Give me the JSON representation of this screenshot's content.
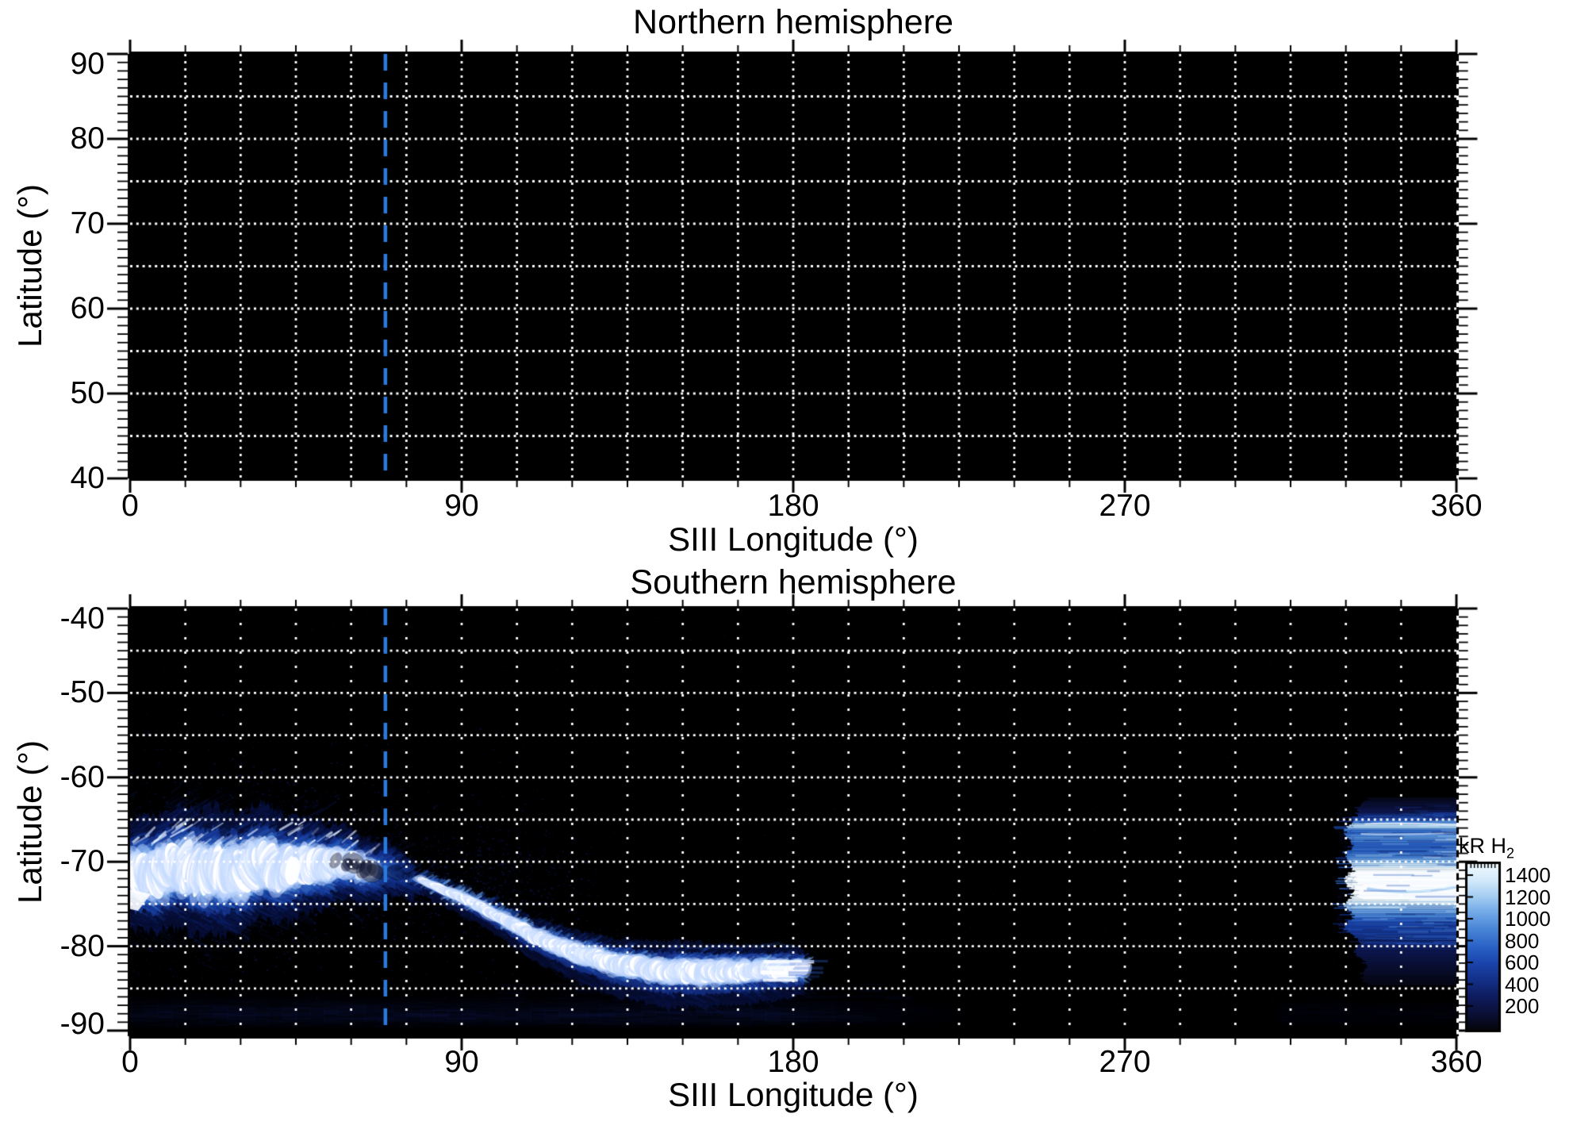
{
  "figure": {
    "background": "#ffffff"
  },
  "chart_data": {
    "type": "heatmap",
    "panels": [
      {
        "id": "north",
        "title": "Northern hemisphere",
        "xlabel": "SIII Longitude (°)",
        "ylabel": "Latitude (°)",
        "xlim": [
          0,
          360
        ],
        "ylim": [
          40,
          90
        ],
        "xticks": [
          0,
          90,
          180,
          270,
          360
        ],
        "yticks": [
          90,
          80,
          70,
          60,
          50,
          40
        ],
        "grid": {
          "lon_step_deg": 15,
          "lat_step_deg": 5
        },
        "marker_longitude_deg": 69.3,
        "emission": "none detected (panel black)"
      },
      {
        "id": "south",
        "title": "Southern hemisphere",
        "xlabel": "SIII Longitude (°)",
        "ylabel": "Latitude (°)",
        "xlim": [
          0,
          360
        ],
        "ylim": [
          -90,
          -40
        ],
        "xticks": [
          0,
          90,
          180,
          270,
          360
        ],
        "yticks": [
          -40,
          -50,
          -60,
          -70,
          -80,
          -90
        ],
        "grid": {
          "lon_step_deg": 15,
          "lat_step_deg": 5
        },
        "marker_longitude_deg": 69.3,
        "auroral_features": {
          "main_oval_path": [
            [
              0,
              -71.9,
              2.2,
              1.0
            ],
            [
              5,
              -71.3,
              2.3,
              1.0
            ],
            [
              10,
              -70.9,
              2.35,
              1.0
            ],
            [
              15,
              -70.7,
              2.45,
              1.0
            ],
            [
              20,
              -71.0,
              2.55,
              1.0
            ],
            [
              25,
              -71.4,
              2.5,
              1.0
            ],
            [
              30,
              -71.0,
              2.4,
              1.0
            ],
            [
              35,
              -70.3,
              2.3,
              0.98
            ],
            [
              40,
              -70.5,
              2.2,
              0.96
            ],
            [
              45,
              -70.8,
              2.0,
              0.93
            ],
            [
              50,
              -70.4,
              1.8,
              0.9
            ],
            [
              55,
              -70.1,
              1.5,
              0.85
            ],
            [
              60,
              -70.5,
              1.4,
              0.76
            ],
            [
              64,
              -70.9,
              1.25,
              0.62
            ],
            [
              68,
              -71.0,
              1.1,
              0.5
            ],
            [
              72,
              -71.3,
              0.95,
              0.4
            ],
            [
              77,
              -71.8,
              0.8,
              0.3
            ]
          ],
          "arc_path": [
            [
              77,
              -71.9,
              0.35,
              0.55
            ],
            [
              80,
              -72.4,
              0.4,
              0.65
            ],
            [
              85,
              -73.3,
              0.45,
              0.75
            ],
            [
              90,
              -74.2,
              0.5,
              0.8
            ],
            [
              95,
              -75.3,
              0.55,
              0.83
            ],
            [
              100,
              -76.4,
              0.6,
              0.85
            ],
            [
              105,
              -77.7,
              0.68,
              0.87
            ],
            [
              110,
              -78.8,
              0.75,
              0.88
            ],
            [
              115,
              -79.8,
              0.82,
              0.9
            ],
            [
              120,
              -80.6,
              0.88,
              0.92
            ],
            [
              125,
              -81.3,
              0.95,
              0.94
            ],
            [
              130,
              -81.9,
              1.0,
              0.97
            ],
            [
              135,
              -82.3,
              1.05,
              0.99
            ],
            [
              140,
              -82.7,
              1.1,
              1.0
            ],
            [
              145,
              -82.9,
              1.15,
              1.0
            ],
            [
              150,
              -83.0,
              1.15,
              1.0
            ],
            [
              155,
              -83.05,
              1.15,
              1.0
            ],
            [
              160,
              -83.05,
              1.1,
              1.0
            ],
            [
              165,
              -83.0,
              1.05,
              1.0
            ],
            [
              170,
              -82.9,
              1.0,
              1.0
            ],
            [
              175,
              -82.8,
              0.95,
              0.97
            ],
            [
              180,
              -82.7,
              0.9,
              0.92
            ],
            [
              183,
              -82.6,
              0.8,
              0.85
            ]
          ],
          "arc_end_longitude_deg": 186,
          "right_patch": {
            "lon_range": [
              330.8,
              360
            ],
            "profile": [
              [
                -62.4,
                0.03
              ],
              [
                -64.2,
                0.18
              ],
              [
                -65.1,
                0.5
              ],
              [
                -65.7,
                0.9
              ],
              [
                -66.3,
                0.48
              ],
              [
                -67.2,
                0.6
              ],
              [
                -68.2,
                0.5
              ],
              [
                -69.2,
                0.6
              ],
              [
                -70.0,
                0.75
              ],
              [
                -70.8,
                0.95
              ],
              [
                -71.3,
                1.0
              ],
              [
                -74.3,
                1.0
              ],
              [
                -75.2,
                0.8
              ],
              [
                -76.3,
                0.55
              ],
              [
                -77.5,
                0.4
              ],
              [
                -79.0,
                0.28
              ],
              [
                -80.5,
                0.18
              ],
              [
                -82.0,
                0.1
              ],
              [
                -83.5,
                0.05
              ],
              [
                -84.6,
                0.02
              ]
            ],
            "white_band_lat": [
              -71.1,
              -74.4
            ],
            "top_streak_lats": [
              -65.5,
              -66.7
            ]
          },
          "bottom_glow": {
            "lon_range": [
              0,
              237
            ],
            "profile": [
              [
                -85.0,
                0.02
              ],
              [
                -85.8,
                0.05
              ],
              [
                -86.4,
                0.1
              ],
              [
                -87.0,
                0.17
              ],
              [
                -87.6,
                0.23
              ],
              [
                -88.3,
                0.24
              ],
              [
                -88.9,
                0.17
              ],
              [
                -89.4,
                0.08
              ],
              [
                -89.8,
                0.02
              ]
            ],
            "right_corner_lon_range": [
              312,
              360
            ]
          },
          "noise_region": {
            "lon": [
              0,
              128
            ],
            "lat": [
              -48,
              -89
            ]
          }
        }
      }
    ],
    "colorbar": {
      "label": "kR H",
      "label_sub": "2",
      "ticks": [
        1400,
        1200,
        1000,
        800,
        600,
        400,
        200
      ],
      "value_range": [
        0,
        1500
      ],
      "colormap": [
        [
          0.0,
          "#04050c"
        ],
        [
          0.09,
          "#0a0f33"
        ],
        [
          0.2,
          "#0f1c5e"
        ],
        [
          0.3,
          "#133088"
        ],
        [
          0.4,
          "#1a44ab"
        ],
        [
          0.5,
          "#2a62c6"
        ],
        [
          0.6,
          "#4783d6"
        ],
        [
          0.7,
          "#6ea6e6"
        ],
        [
          0.8,
          "#a2ccf2"
        ],
        [
          0.9,
          "#d2e9fa"
        ],
        [
          1.0,
          "#f0faff"
        ]
      ]
    },
    "marker_color": "#2b7bdf",
    "grid_color": "#ffffff"
  }
}
